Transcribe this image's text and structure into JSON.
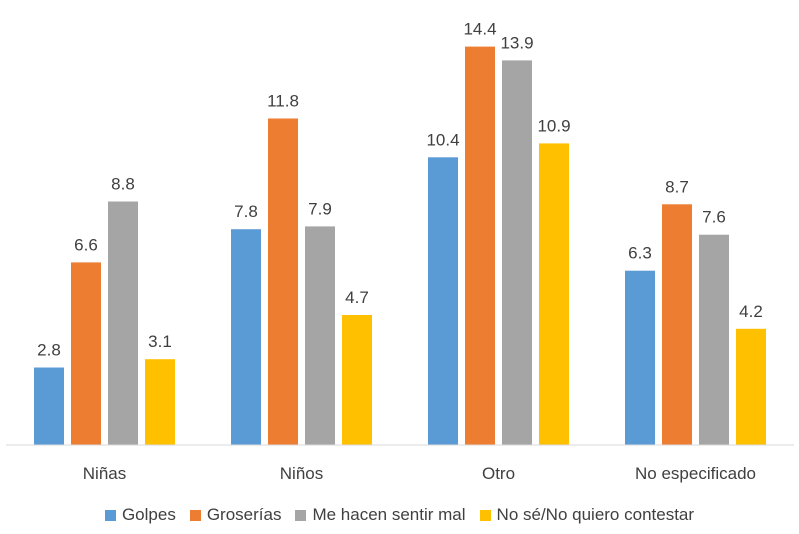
{
  "chart_data": {
    "type": "bar",
    "categories": [
      "Niñas",
      "Niños",
      "Otro",
      "No especificado"
    ],
    "series": [
      {
        "name": "Golpes",
        "color": "#5B9BD5",
        "values": [
          2.8,
          7.8,
          10.4,
          6.3
        ]
      },
      {
        "name": "Groserías",
        "color": "#ED7D31",
        "values": [
          6.6,
          11.8,
          14.4,
          8.7
        ]
      },
      {
        "name": "Me hacen sentir mal",
        "color": "#A5A5A5",
        "values": [
          8.8,
          7.9,
          13.9,
          7.6
        ]
      },
      {
        "name": "No sé/No quiero contestar",
        "color": "#FFC000",
        "values": [
          3.1,
          4.7,
          10.9,
          4.2
        ]
      }
    ],
    "ylim": [
      0,
      15
    ],
    "grid": false,
    "legend_position": "bottom"
  }
}
